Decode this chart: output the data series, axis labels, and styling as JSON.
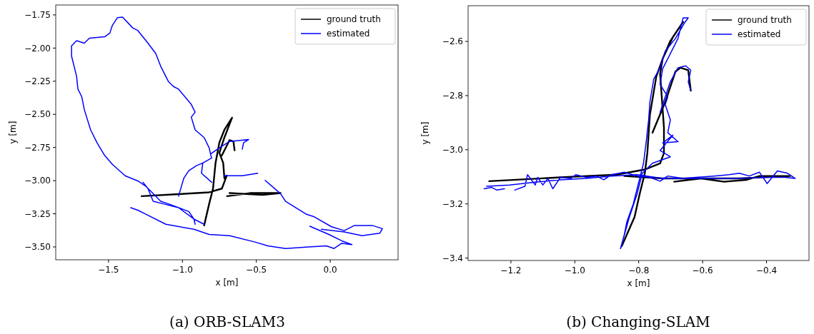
{
  "chart_data": [
    {
      "type": "line",
      "title": "(a)  ORB-SLAM3",
      "xlabel": "x [m]",
      "ylabel": "y [m]",
      "xlim": [
        -1.857,
        0.459
      ],
      "ylim": [
        -3.597,
        -1.675
      ],
      "xticks": [
        {
          "value": -1.5,
          "label": "−1.5"
        },
        {
          "value": -1.0,
          "label": "−1.0"
        },
        {
          "value": -0.5,
          "label": "−0.5"
        },
        {
          "value": 0.0,
          "label": "0.0"
        }
      ],
      "yticks": [
        {
          "value": -3.5,
          "label": "−3.50"
        },
        {
          "value": -3.25,
          "label": "−3.25"
        },
        {
          "value": -3.0,
          "label": "−3.00"
        },
        {
          "value": -2.75,
          "label": "−2.75"
        },
        {
          "value": -2.5,
          "label": "−2.50"
        },
        {
          "value": -2.25,
          "label": "−2.25"
        },
        {
          "value": -2.0,
          "label": "−2.00"
        },
        {
          "value": -1.75,
          "label": "−1.75"
        }
      ],
      "grid": false,
      "legend": "top right",
      "marker": "none",
      "line_style": "solid",
      "series": [
        {
          "name": "ground truth",
          "color": "#000000",
          "x": [
            -1.276,
            -1.026,
            -0.819,
            -0.733,
            -0.7,
            -0.716,
            -0.724,
            -0.75,
            -0.716,
            -0.664,
            -0.716,
            -0.75,
            -0.776,
            -0.793,
            -0.819,
            -0.853,
            null,
            -0.733,
            -0.681,
            -0.655,
            -0.647,
            null,
            -0.698,
            -0.543,
            -0.336,
            -0.457,
            -0.681
          ],
          "values": [
            -3.117,
            -3.102,
            -3.088,
            -3.06,
            -2.962,
            -2.983,
            -2.867,
            -2.79,
            -2.675,
            -2.525,
            -2.617,
            -2.713,
            -2.867,
            -3.06,
            -3.175,
            -3.338,
            null,
            -2.81,
            -2.694,
            -2.704,
            -2.771,
            null,
            -3.117,
            -3.094,
            -3.094,
            -3.108,
            -3.094
          ]
        },
        {
          "name": "estimated",
          "color": "#0000ff",
          "x": [
            -0.802,
            -0.871,
            -0.862,
            -0.802,
            -0.81,
            -0.819,
            -0.853,
            -0.914,
            -0.94,
            -0.914,
            -0.94,
            -1.026,
            -1.06,
            -1.095,
            -1.147,
            -1.181,
            -1.233,
            -1.302,
            -1.336,
            -1.405,
            -1.44,
            -1.474,
            -1.491,
            -1.526,
            -1.629,
            -1.664,
            -1.716,
            -1.75,
            -1.75,
            -1.716,
            -1.707,
            -1.681,
            -1.664,
            -1.621,
            -1.578,
            -1.526,
            -1.474,
            -1.388,
            -1.302,
            -1.25,
            -1.198,
            -1.147,
            -1.095,
            -1.026,
            -0.957,
            -0.922,
            -0.914,
            null,
            -0.81,
            -0.75,
            -0.681,
            -0.552,
            -0.586,
            -0.595,
            null,
            -0.716,
            -0.595,
            -0.491,
            null,
            -1.026,
            -0.991,
            -0.957,
            -0.905,
            -0.862,
            null,
            -1.267,
            -1.233,
            -1.198,
            -1.129,
            -1.026,
            -0.922,
            -0.853,
            null,
            -1.35,
            -1.302,
            -1.25,
            -1.112,
            -0.922,
            -0.819,
            -0.681,
            -0.509,
            -0.422,
            -0.302,
            -0.164,
            -0.026,
            0.026,
            0.078,
            0.147,
            0.078,
            -0.009,
            -0.138,
            null,
            -0.44,
            -0.336,
            -0.302,
            -0.164,
            -0.112,
            0.009,
            0.095,
            0.164,
            0.284,
            0.353,
            0.336,
            0.216,
            0.095,
            -0.06
          ],
          "values": [
            -3.012,
            -2.944,
            -2.867,
            -2.829,
            -2.8,
            -2.752,
            -2.675,
            -2.617,
            -2.521,
            -2.483,
            -2.425,
            -2.31,
            -2.29,
            -2.252,
            -2.137,
            -2.04,
            -1.963,
            -1.867,
            -1.848,
            -1.767,
            -1.771,
            -1.829,
            -1.887,
            -1.915,
            -1.925,
            -1.963,
            -1.944,
            -1.983,
            -2.06,
            -2.213,
            -2.31,
            -2.367,
            -2.463,
            -2.617,
            -2.713,
            -2.81,
            -2.877,
            -2.963,
            -3.002,
            -3.04,
            -3.098,
            -3.156,
            -3.175,
            -3.204,
            -3.233,
            -3.29,
            -3.329,
            null,
            -2.8,
            -2.752,
            -2.704,
            -2.69,
            -2.713,
            -2.762,
            null,
            -2.963,
            -2.963,
            -2.944,
            null,
            -3.117,
            -2.983,
            -2.925,
            -2.887,
            -2.867,
            null,
            -3.012,
            -3.06,
            -3.156,
            -3.175,
            -3.204,
            -3.29,
            -3.329,
            null,
            -3.204,
            -3.223,
            -3.252,
            -3.329,
            -3.367,
            -3.406,
            -3.415,
            -3.463,
            -3.492,
            -3.512,
            -3.502,
            -3.492,
            -3.512,
            -3.473,
            -3.483,
            -3.454,
            -3.406,
            -3.344,
            null,
            -2.998,
            -3.098,
            -3.156,
            -3.252,
            -3.271,
            -3.348,
            -3.377,
            -3.338,
            -3.338,
            -3.362,
            -3.396,
            -3.415,
            -3.387,
            -3.367
          ]
        }
      ]
    },
    {
      "type": "line",
      "title": "(b)  Changing-SLAM",
      "xlabel": "x [m]",
      "ylabel": "y [m]",
      "xlim": [
        -1.334,
        -0.267
      ],
      "ylim": [
        -3.409,
        -2.468
      ],
      "xticks": [
        {
          "value": -1.2,
          "label": "−1.2"
        },
        {
          "value": -1.0,
          "label": "−1.0"
        },
        {
          "value": -0.8,
          "label": "−0.8"
        },
        {
          "value": -0.6,
          "label": "−0.6"
        },
        {
          "value": -0.4,
          "label": "−0.4"
        }
      ],
      "yticks": [
        {
          "value": -3.4,
          "label": "−3.4"
        },
        {
          "value": -3.2,
          "label": "−3.2"
        },
        {
          "value": -3.0,
          "label": "−3.0"
        },
        {
          "value": -2.8,
          "label": "−2.8"
        },
        {
          "value": -2.6,
          "label": "−2.6"
        }
      ],
      "grid": false,
      "legend": "top right",
      "marker": "none",
      "line_style": "solid",
      "series": [
        {
          "name": "ground truth",
          "color": "#000000",
          "x": [
            -1.268,
            -1.045,
            -0.869,
            -0.781,
            -0.733,
            -0.721,
            -0.721,
            -0.733,
            -0.725,
            -0.701,
            -0.661,
            -0.693,
            -0.725,
            -0.745,
            -0.765,
            -0.773,
            -0.781,
            -0.797,
            -0.813,
            -0.837,
            -0.853,
            null,
            -0.757,
            -0.717,
            -0.685,
            -0.669,
            -0.645,
            -0.637,
            null,
            -0.689,
            -0.605,
            -0.533,
            -0.462,
            -0.422,
            -0.326,
            -0.485,
            -0.725,
            -0.845
          ],
          "values": [
            -3.116,
            -3.102,
            -3.092,
            -3.073,
            -3.05,
            -3.012,
            -2.918,
            -2.72,
            -2.664,
            -2.598,
            -2.528,
            -2.584,
            -2.664,
            -2.73,
            -2.871,
            -3.012,
            -3.087,
            -3.163,
            -3.248,
            -3.313,
            -3.356,
            null,
            -2.937,
            -2.824,
            -2.711,
            -2.697,
            -2.706,
            -2.782,
            null,
            -3.118,
            -3.106,
            -3.118,
            -3.111,
            -3.097,
            -3.097,
            -3.106,
            -3.106,
            -3.097
          ]
        },
        {
          "name": "estimated",
          "color": "#0000ff",
          "x": [
            -1.284,
            -1.26,
            -1.244,
            -1.22,
            null,
            -1.188,
            -1.156,
            -1.148,
            -1.124,
            -1.116,
            -1.1,
            -1.084,
            -1.069,
            -1.045,
            -1.013,
            -0.997,
            -0.965,
            -0.933,
            -0.909,
            -0.885,
            -0.845,
            -0.805,
            -0.765,
            -0.733,
            -0.709,
            -0.661,
            -0.621,
            -0.565,
            -0.517,
            -0.485,
            -0.454,
            -0.422,
            -0.398,
            -0.366,
            -0.334,
            -0.31,
            -0.342,
            -0.406,
            -0.485,
            -0.605,
            -0.725,
            -0.805,
            -0.885,
            -0.965,
            -1.045,
            -1.124,
            -1.204,
            -1.276,
            null,
            -0.857,
            -0.845,
            -0.837,
            -0.817,
            -0.801,
            -0.785,
            -0.777,
            -0.769,
            -0.765,
            -0.753,
            -0.733,
            -0.717,
            -0.685,
            -0.657,
            -0.645,
            -0.661,
            -0.677,
            -0.701,
            -0.725,
            -0.733,
            -0.709,
            -0.717,
            -0.701,
            -0.709,
            -0.677,
            -0.725,
            -0.693,
            -0.733,
            -0.701,
            -0.757,
            -0.789,
            -0.805,
            -0.829,
            -0.849,
            -0.855,
            null,
            -0.733,
            -0.717,
            -0.701,
            -0.677,
            -0.653,
            -0.637,
            -0.645,
            -0.637
          ],
          "values": [
            -3.144,
            -3.139,
            -3.149,
            -3.144,
            null,
            -3.149,
            -3.135,
            -3.092,
            -3.13,
            -3.102,
            -3.13,
            -3.106,
            -3.144,
            -3.102,
            -3.106,
            -3.092,
            -3.102,
            -3.097,
            -3.111,
            -3.092,
            -3.083,
            -3.097,
            -3.102,
            -3.116,
            -3.097,
            -3.106,
            -3.102,
            -3.097,
            -3.092,
            -3.087,
            -3.097,
            -3.083,
            -3.125,
            -3.078,
            -3.087,
            -3.106,
            -3.102,
            -3.102,
            -3.106,
            -3.106,
            -3.106,
            -3.092,
            -3.097,
            -3.106,
            -3.111,
            -3.12,
            -3.13,
            -3.135,
            null,
            -3.365,
            -3.313,
            -3.266,
            -3.2,
            -3.125,
            -3.05,
            -2.975,
            -2.89,
            -2.824,
            -2.739,
            -2.697,
            -2.636,
            -2.589,
            -2.532,
            -2.513,
            -2.513,
            -2.589,
            -2.645,
            -2.701,
            -2.758,
            -2.805,
            -2.833,
            -2.89,
            -2.937,
            -2.97,
            -2.975,
            -2.946,
            -3.003,
            -3.026,
            -3.05,
            -3.087,
            -3.163,
            -3.248,
            -3.332,
            -3.36,
            null,
            -2.862,
            -2.805,
            -2.749,
            -2.697,
            -2.69,
            -2.706,
            -2.749,
            -2.782
          ]
        }
      ]
    }
  ]
}
